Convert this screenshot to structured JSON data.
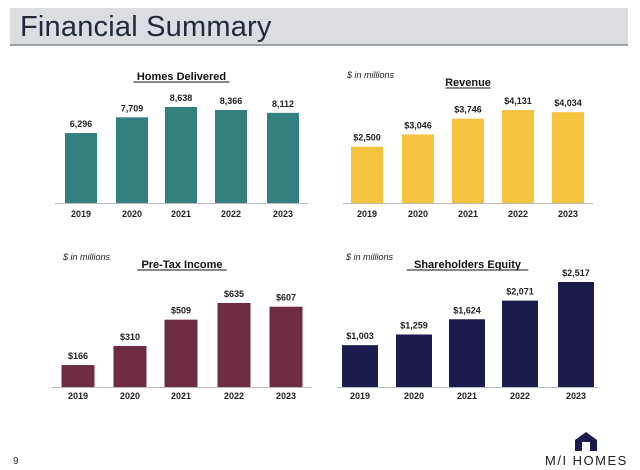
{
  "page": {
    "title": "Financial Summary",
    "page_number": "9",
    "logo_text": "M/I HOMES"
  },
  "chart_data": [
    {
      "type": "bar",
      "title": "Homes Delivered",
      "subtitle": "",
      "color": "#33807e",
      "categories": [
        "2019",
        "2020",
        "2021",
        "2022",
        "2023"
      ],
      "values": [
        6296,
        7709,
        8638,
        8366,
        8112
      ],
      "labels": [
        "6,296",
        "7,709",
        "8,638",
        "8,366",
        "8,112"
      ],
      "ylim": [
        0,
        8638
      ]
    },
    {
      "type": "bar",
      "title": "Revenue",
      "subtitle": "$ in millions",
      "color": "#f5c43e",
      "categories": [
        "2019",
        "2020",
        "2021",
        "2022",
        "2023"
      ],
      "values": [
        2500,
        3046,
        3746,
        4131,
        4034
      ],
      "labels": [
        "$2,500",
        "$3,046",
        "$3,746",
        "$4,131",
        "$4,034"
      ],
      "ylim": [
        0,
        4131
      ]
    },
    {
      "type": "bar",
      "title": "Pre-Tax Income",
      "subtitle": "$ in millions",
      "color": "#6e2c43",
      "categories": [
        "2019",
        "2020",
        "2021",
        "2022",
        "2023"
      ],
      "values": [
        166,
        310,
        509,
        635,
        607
      ],
      "labels": [
        "$166",
        "$310",
        "$509",
        "$635",
        "$607"
      ],
      "ylim": [
        0,
        635
      ]
    },
    {
      "type": "bar",
      "title": "Shareholders Equity",
      "subtitle": "$ in millions",
      "color": "#1b1c4e",
      "categories": [
        "2019",
        "2020",
        "2021",
        "2022",
        "2023"
      ],
      "values": [
        1003,
        1259,
        1624,
        2071,
        2517
      ],
      "labels": [
        "$1,003",
        "$1,259",
        "$1,624",
        "$2,071",
        "$2,517"
      ],
      "ylim": [
        0,
        2517
      ]
    }
  ]
}
